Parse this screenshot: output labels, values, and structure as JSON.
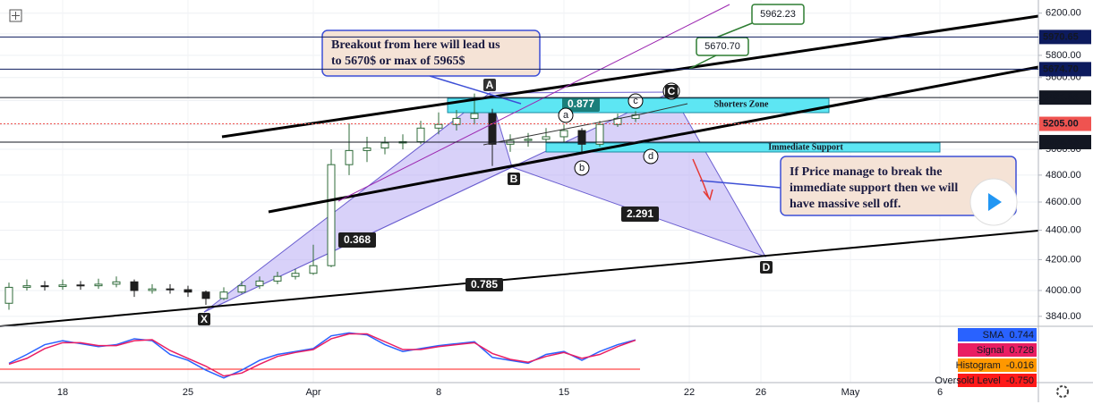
{
  "chart_data": {
    "type": "candlestick",
    "categories": [
      null,
      null,
      null,
      "18",
      null,
      null,
      null,
      null,
      null,
      null,
      "25",
      null,
      null,
      null,
      null,
      null,
      null,
      "Apr",
      null,
      null,
      null,
      null,
      null,
      null,
      "8",
      null,
      null,
      null,
      null,
      null,
      null,
      "15",
      null,
      null,
      null,
      null,
      null,
      null,
      "22",
      null,
      null,
      null,
      "26",
      null,
      null,
      null,
      null,
      "May",
      null,
      null,
      null,
      null,
      "6",
      null,
      null,
      null,
      null,
      null
    ],
    "open": [
      3920,
      4020,
      4030,
      4025,
      4035,
      4030,
      4040,
      4055,
      4000,
      4010,
      4005,
      3990,
      3950,
      3990,
      4030,
      4060,
      4090,
      4110,
      4160,
      4880,
      4990,
      5010,
      5050,
      5060,
      5170,
      5200,
      5250,
      5290,
      5040,
      5070,
      5080,
      5100,
      5150,
      5040,
      5200,
      5250,
      null,
      null,
      null,
      null,
      null,
      null,
      null,
      null,
      null,
      null,
      null,
      null,
      null,
      null,
      null,
      null,
      null,
      null,
      null,
      null,
      null,
      null
    ],
    "high": [
      4050,
      4070,
      4060,
      4070,
      4060,
      4075,
      4090,
      4070,
      4040,
      4040,
      4030,
      4000,
      4020,
      4060,
      4090,
      4120,
      4140,
      4300,
      5000,
      5210,
      5100,
      5100,
      5120,
      5230,
      5300,
      5320,
      5460,
      5330,
      5120,
      5130,
      5170,
      5200,
      5170,
      5230,
      5290,
      5310,
      null,
      null,
      null,
      null,
      null,
      null,
      null,
      null,
      null,
      null,
      null,
      null,
      null,
      null,
      null,
      null,
      null,
      null,
      null,
      null,
      null,
      null
    ],
    "low": [
      3880,
      4000,
      4000,
      4005,
      4005,
      4010,
      4020,
      3960,
      3980,
      3980,
      3960,
      3910,
      3940,
      3980,
      4010,
      4040,
      4070,
      4100,
      4150,
      4800,
      4900,
      4960,
      5000,
      5040,
      5120,
      5150,
      5200,
      4870,
      4980,
      5020,
      5050,
      5060,
      4980,
      5020,
      5180,
      5220,
      null,
      null,
      null,
      null,
      null,
      null,
      null,
      null,
      null,
      null,
      null,
      null,
      null,
      null,
      null,
      null,
      null,
      null,
      null,
      null,
      null,
      null
    ],
    "close": [
      4020,
      4030,
      4025,
      4035,
      4030,
      4040,
      4055,
      4000,
      4010,
      4005,
      3990,
      3950,
      3990,
      4030,
      4060,
      4090,
      4110,
      4160,
      4880,
      4990,
      5010,
      5050,
      5060,
      5170,
      5200,
      5250,
      5290,
      5040,
      5070,
      5080,
      5100,
      5150,
      5040,
      5200,
      5250,
      5280,
      null,
      null,
      null,
      null,
      null,
      null,
      null,
      null,
      null,
      null,
      null,
      null,
      null,
      null,
      null,
      null,
      null,
      null,
      null,
      null,
      null,
      null
    ],
    "up_color": "#2f6b3a",
    "down_color": "#1e1e1e",
    "log_scale": true,
    "grid": true,
    "ylim": [
      3780,
      6330
    ],
    "yticks": [
      {
        "value": 3840,
        "label": "3840.00"
      },
      {
        "value": 4000,
        "label": "4000.00"
      },
      {
        "value": 4200,
        "label": "4200.00"
      },
      {
        "value": 4400,
        "label": "4400.00"
      },
      {
        "value": 4600,
        "label": "4600.00"
      },
      {
        "value": 4800,
        "label": "4800.00"
      },
      {
        "value": 5000,
        "label": "5000.00"
      },
      {
        "value": 5200,
        "label": "5200.00"
      },
      {
        "value": 5400,
        "label": "5400.00"
      },
      {
        "value": 5600,
        "label": "5600.00"
      },
      {
        "value": 5800,
        "label": "5800.00"
      },
      {
        "value": 6000,
        "label": "6000.00"
      },
      {
        "value": 6200,
        "label": "6200.00"
      }
    ],
    "price_lines": [
      {
        "value": 5970.65,
        "color": "#0d1b5e"
      },
      {
        "value": {
          "value": 5674.7,
          "label": "5674.70"
        },
        "color": "#0d1b5e"
      },
      {
        "value": 5425.65,
        "color": "#131722"
      },
      {
        "value": {
          "value": 5205,
          "label": "5205.00"
        },
        "color": "#ef5350"
      },
      {
        "value": 5056.83,
        "color": "#131722"
      }
    ],
    "annotations": {
      "breakout_note": [
        "Breakout from here will lead us",
        "to 5670$ or max of 5965$"
      ],
      "selloff_note": [
        "If Price manage to break the",
        "immediate support then we will",
        "have massive sell off."
      ],
      "targets": [
        5962.23,
        {
          "value": 5670.7,
          "label": "5670.70"
        }
      ],
      "zones": [
        "Shorters Zone",
        "Immediate Support"
      ],
      "ratios": [
        0.877,
        0.368,
        2.291,
        0.785
      ],
      "points": [
        "X",
        "A",
        "B",
        "C",
        "D"
      ],
      "sub_points": [
        "a",
        "b",
        "c",
        "d"
      ]
    },
    "indicator": {
      "ylim": [
        -1.3,
        1.3
      ],
      "series": [
        {
          "name": "SMA",
          "value": 0.744,
          "color": "#2962ff",
          "values": [
            -0.45,
            0.0,
            0.5,
            0.7,
            0.55,
            0.4,
            0.5,
            0.8,
            0.7,
            0.0,
            -0.3,
            -0.8,
            -1.2,
            -0.8,
            -0.3,
            0.0,
            0.15,
            0.3,
            0.95,
            1.1,
            1.0,
            0.5,
            0.15,
            0.3,
            0.45,
            0.55,
            0.65,
            -0.15,
            -0.3,
            -0.45,
            0.0,
            0.15,
            -0.3,
            0.15,
            0.5,
            0.744,
            null,
            null,
            null,
            null,
            null,
            null,
            null,
            null,
            null,
            null,
            null,
            null,
            null,
            null,
            null,
            null,
            null,
            null,
            null,
            null,
            null,
            null
          ]
        },
        {
          "name": "Signal",
          "value": 0.728,
          "color": "#e91e63",
          "values": [
            -0.5,
            -0.2,
            0.3,
            0.6,
            0.6,
            0.45,
            0.45,
            0.7,
            0.75,
            0.2,
            -0.2,
            -0.6,
            -1.1,
            -0.95,
            -0.5,
            -0.1,
            0.1,
            0.25,
            0.8,
            1.05,
            1.05,
            0.65,
            0.25,
            0.25,
            0.4,
            0.5,
            0.6,
            0.05,
            -0.25,
            -0.4,
            -0.1,
            0.1,
            -0.2,
            0.0,
            0.4,
            0.728,
            null,
            null,
            null,
            null,
            null,
            null,
            null,
            null,
            null,
            null,
            null,
            null,
            null,
            null,
            null,
            null,
            null,
            null,
            null,
            null,
            null,
            null
          ]
        },
        {
          "name": "Histogram",
          "value": -0.016,
          "color": "#ff9800"
        }
      ],
      "level": {
        "name": "Oversold Level",
        "value": {
          "value": -0.75,
          "label": "-0.750"
        },
        "color": "#ff1a1a"
      }
    }
  }
}
